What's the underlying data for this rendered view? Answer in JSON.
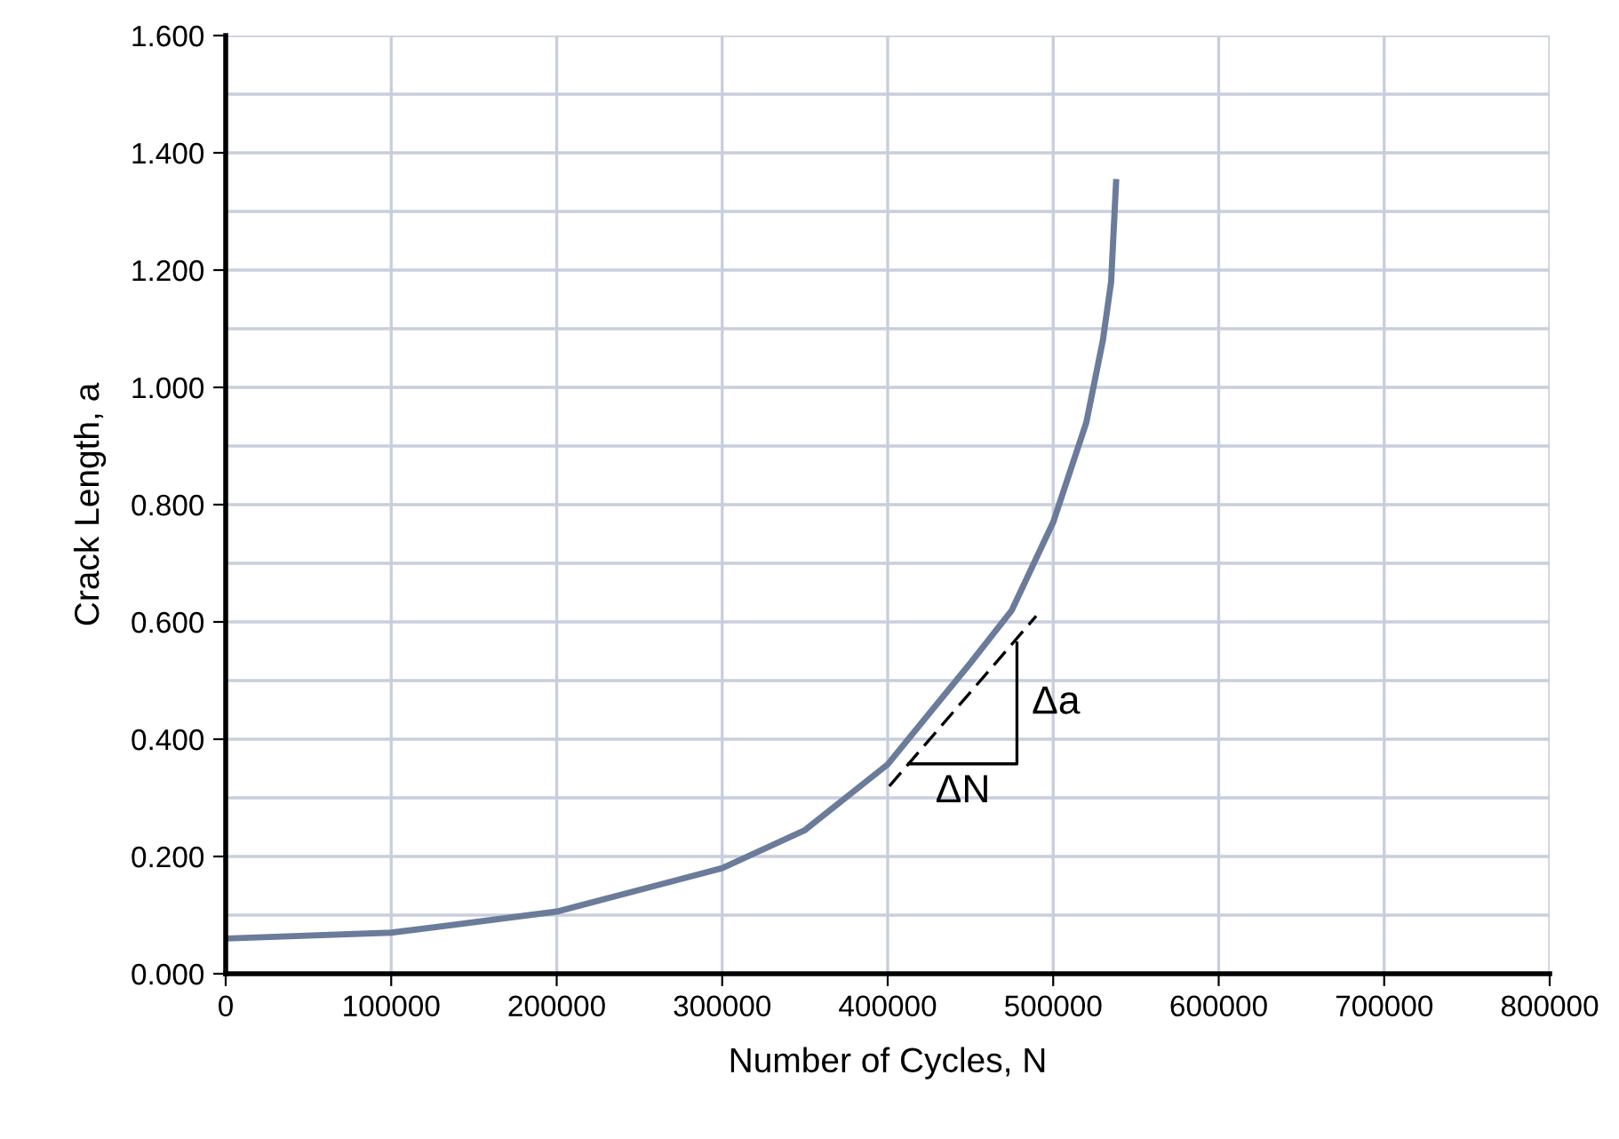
{
  "chart_data": {
    "type": "line",
    "xlabel": "Number of Cycles, N",
    "ylabel": "Crack Length, a",
    "series": [
      {
        "color": "#6b7b9a",
        "x": [
          0,
          100000,
          200000,
          300000,
          350000,
          400000,
          450000,
          475000,
          500000,
          520000,
          530000,
          535000,
          538000
        ],
        "values": [
          0.06,
          0.07,
          0.106,
          0.18,
          0.245,
          0.357,
          0.53,
          0.62,
          0.77,
          0.94,
          1.08,
          1.18,
          1.35
        ]
      },
      {
        "color": "#000000",
        "line_style": "dashed",
        "x": [
          401000,
          489700
        ],
        "values": [
          0.32,
          0.61
        ]
      },
      {
        "color": "#000000",
        "x": [
          412700,
          478100,
          478100
        ],
        "values": [
          0.358,
          0.358,
          0.564
        ]
      }
    ],
    "annotations": [
      "Δa",
      "ΔN"
    ],
    "xlim": [
      0,
      800000
    ],
    "ylim": [
      0,
      1.6
    ],
    "xticks": [
      0,
      100000,
      200000,
      300000,
      400000,
      500000,
      600000,
      700000,
      800000
    ],
    "yticks": [
      {
        "value": 0,
        "label": "0.000"
      },
      {
        "value": 0.1,
        "label": null
      },
      {
        "value": 0.2,
        "label": "0.200"
      },
      {
        "value": 0.3,
        "label": null
      },
      {
        "value": 0.4,
        "label": "0.400"
      },
      {
        "value": 0.5,
        "label": null
      },
      {
        "value": 0.6,
        "label": "0.600"
      },
      {
        "value": 0.7,
        "label": null
      },
      {
        "value": 0.8,
        "label": "0.800"
      },
      {
        "value": 0.9,
        "label": null
      },
      {
        "value": 1.0,
        "label": "1.000"
      },
      {
        "value": 1.1,
        "label": null
      },
      {
        "value": 1.2,
        "label": "1.200"
      },
      {
        "value": 1.3,
        "label": null
      },
      {
        "value": 1.4,
        "label": "1.400"
      },
      {
        "value": 1.5,
        "label": null
      },
      {
        "value": 1.6,
        "label": "1.600"
      }
    ],
    "grid": true,
    "legend": false,
    "marker": "none"
  }
}
